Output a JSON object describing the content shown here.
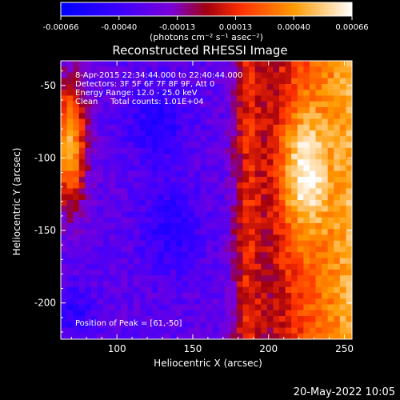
{
  "chart_data": {
    "type": "heatmap",
    "title": "Reconstructed RHESSI Image",
    "xlabel": "Heliocentric X (arcsec)",
    "ylabel": "Heliocentric Y (arcsec)",
    "xlim": [
      63,
      255
    ],
    "ylim": [
      -225,
      -33
    ],
    "xticks": [
      100,
      150,
      200,
      250
    ],
    "yticks": [
      -50,
      -100,
      -150,
      -200
    ],
    "colorbar": {
      "range": [
        -0.00066,
        0.00066
      ],
      "ticks": [
        "-0.00066",
        "-0.00040",
        "-0.00013",
        "0.00013",
        "0.00040",
        "0.00066"
      ],
      "units": "(photons cm⁻² s⁻¹ asec⁻²)",
      "colormap": [
        "#0000ff",
        "#4a00ff",
        "#8000c8",
        "#b00000",
        "#ff4000",
        "#ffb000",
        "#ffffff"
      ]
    },
    "annotations": [
      "8-Apr-2015 22:34:44.000 to 22:40:44.000",
      "Detectors: 3F 5F 6F 7F 8F 9F, Att 0",
      "Energy Range: 12.0 - 25.0 keV",
      "Clean     Total counts: 1.01E+04"
    ],
    "peak_label": "Position of Peak = [61,-50]",
    "grid": false
  },
  "footer": {
    "date": "20-May-2022 10:05"
  }
}
